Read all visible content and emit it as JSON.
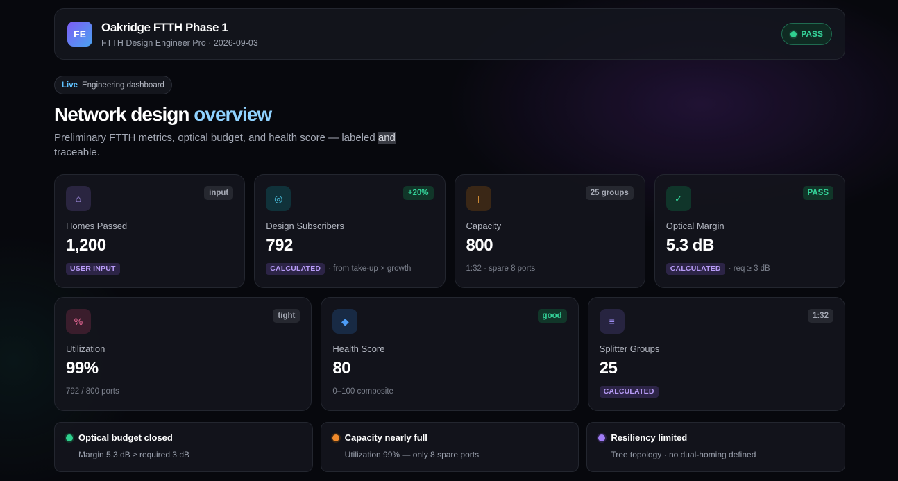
{
  "header": {
    "logo": "FE",
    "title": "Oakridge FTTH Phase 1",
    "subtitle": "FTTH Design Engineer Pro · 2026-09-03",
    "status": "PASS"
  },
  "hero": {
    "live_label": "Live",
    "live_text": "Engineering dashboard",
    "title_main": "Network design",
    "title_accent": "overview",
    "description_start": "Preliminary FTTH metrics, optical budget, and health score — labeled",
    "description_highlight": "and",
    "description_end": "traceable."
  },
  "metrics_row1": [
    {
      "icon": "home-icon",
      "glyph": "⌂",
      "tag": "input",
      "label": "Homes Passed",
      "value": "1,200",
      "badge": "USER INPUT",
      "note": ""
    },
    {
      "icon": "subscribers-icon",
      "glyph": "◎",
      "tag": "+20%",
      "label": "Design Subscribers",
      "value": "792",
      "badge": "CALCULATED",
      "note": "· from take-up × growth"
    },
    {
      "icon": "capacity-icon",
      "glyph": "◫",
      "tag": "25 groups",
      "label": "Capacity",
      "value": "800",
      "badge": "",
      "note": "1:32 · spare 8 ports"
    },
    {
      "icon": "checkmark-icon",
      "glyph": "✓",
      "tag": "PASS",
      "label": "Optical Margin",
      "value": "5.3 dB",
      "badge": "CALCULATED",
      "note": "· req ≥ 3 dB"
    }
  ],
  "metrics_row2": [
    {
      "icon": "percent-icon",
      "glyph": "%",
      "tag": "tight",
      "label": "Utilization",
      "value": "99%",
      "badge": "",
      "note": "792 / 800 ports"
    },
    {
      "icon": "diamond-icon",
      "glyph": "◆",
      "tag": "good",
      "label": "Health Score",
      "value": "80",
      "badge": "",
      "note": "0–100 composite"
    },
    {
      "icon": "splitter-icon",
      "glyph": "≡",
      "tag": "1:32",
      "label": "Splitter Groups",
      "value": "25",
      "badge": "CALCULATED",
      "note": ""
    }
  ],
  "alerts": [
    {
      "title": "Optical budget closed",
      "text": "Margin 5.3 dB ≥ required 3 dB"
    },
    {
      "title": "Capacity nearly full",
      "text": "Utilization 99% — only 8 spare ports"
    },
    {
      "title": "Resiliency limited",
      "text": "Tree topology · no dual-homing defined"
    }
  ],
  "colors": {
    "success": "#2fd08f",
    "warning": "#f08a2c",
    "info": "#a07cf5",
    "accent": "#8fd2ff"
  }
}
